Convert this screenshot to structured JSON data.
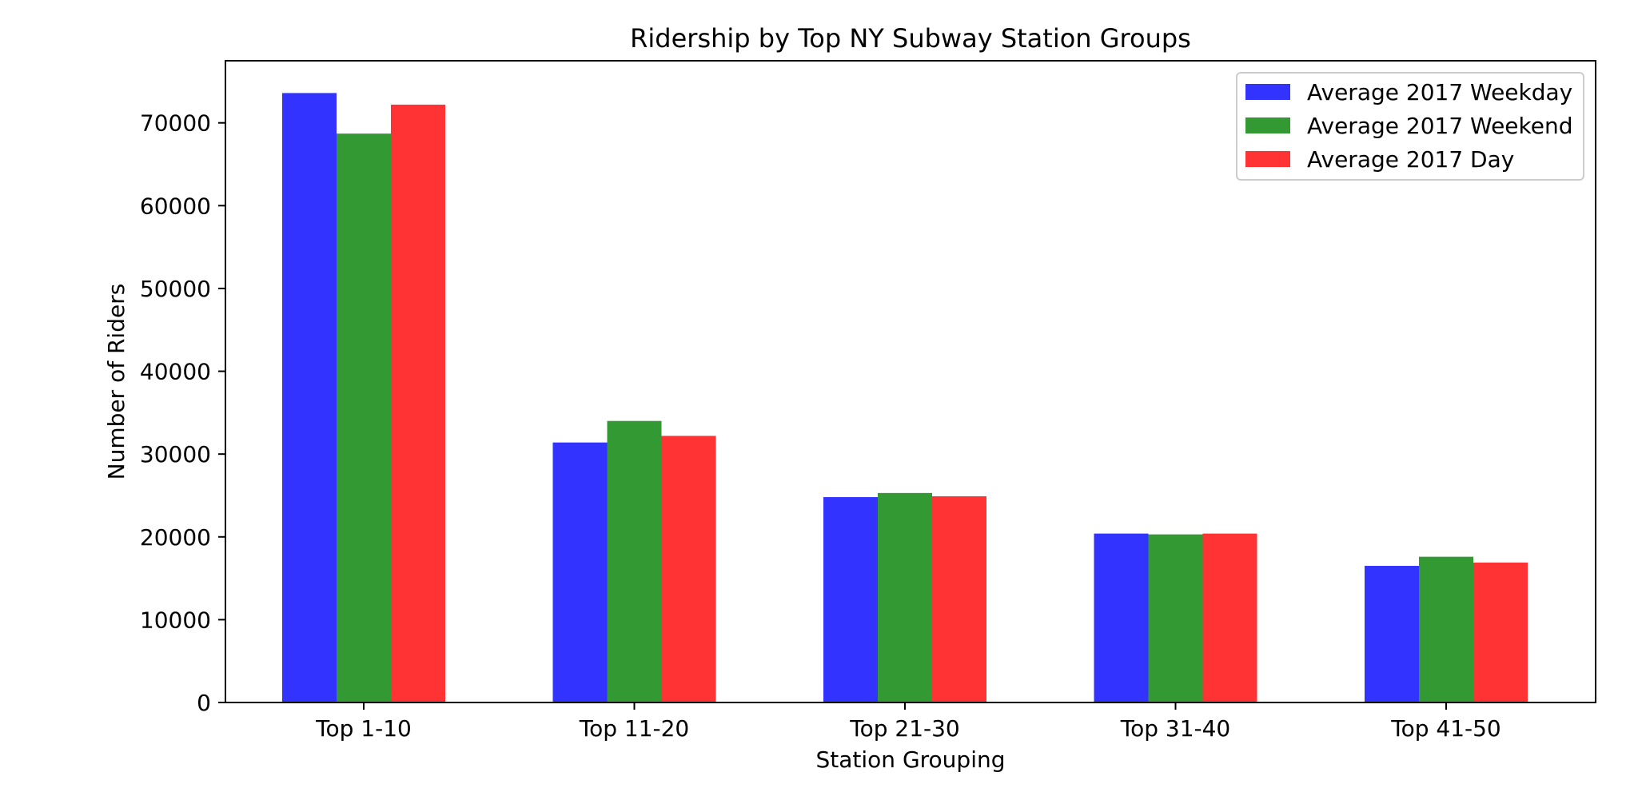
{
  "chart_data": {
    "type": "bar",
    "title": "Ridership by Top NY Subway Station Groups",
    "xlabel": "Station Grouping",
    "ylabel": "Number of Riders",
    "categories": [
      "Top 1-10",
      "Top 11-20",
      "Top 21-30",
      "Top 31-40",
      "Top 41-50"
    ],
    "series": [
      {
        "name": "Average 2017 Weekday",
        "color": "#3333ff",
        "values": [
          73600,
          31400,
          24800,
          20400,
          16500
        ]
      },
      {
        "name": "Average 2017 Weekend",
        "color": "#339933",
        "values": [
          68700,
          34000,
          25300,
          20300,
          17600
        ]
      },
      {
        "name": "Average 2017 Day",
        "color": "#ff3333",
        "values": [
          72200,
          32200,
          24900,
          20400,
          16900
        ]
      }
    ],
    "ylim": [
      0,
      77500
    ],
    "yticks": [
      0,
      10000,
      20000,
      30000,
      40000,
      50000,
      60000,
      70000
    ],
    "ytick_labels": [
      "0",
      "10000",
      "20000",
      "30000",
      "40000",
      "50000",
      "60000",
      "70000"
    ],
    "grid": false,
    "legend_position": "top-right"
  }
}
